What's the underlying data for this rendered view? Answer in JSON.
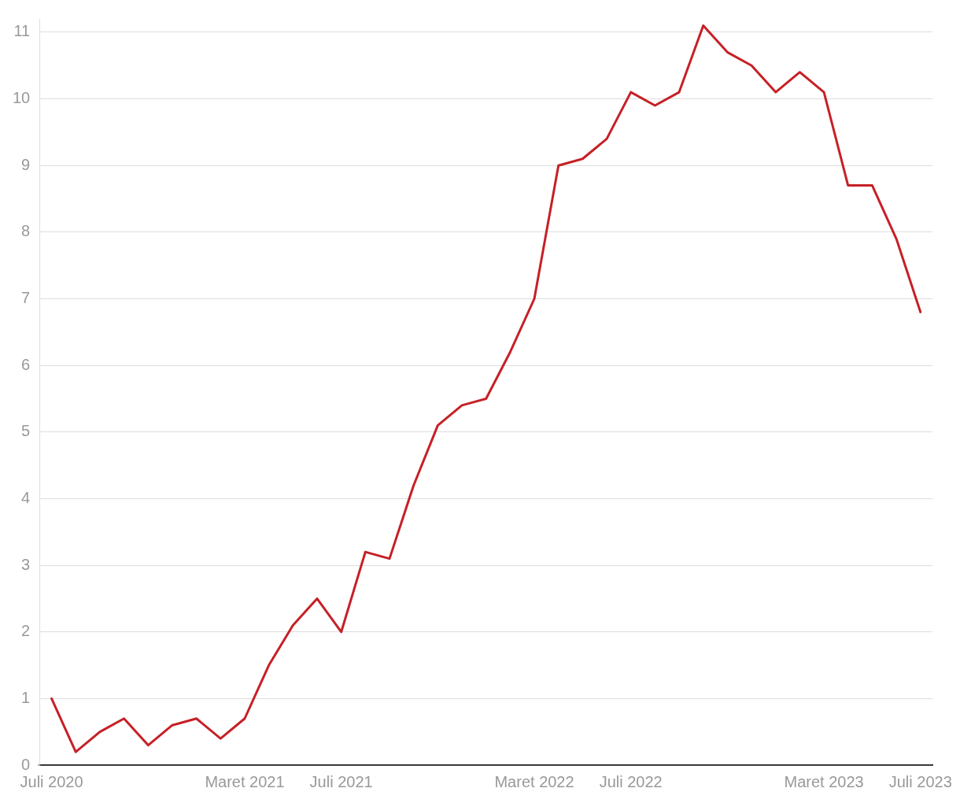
{
  "chart_data": {
    "type": "line",
    "categories": [
      "Juli 2020",
      null,
      null,
      null,
      null,
      null,
      null,
      null,
      "Maret 2021",
      null,
      null,
      null,
      "Juli 2021",
      null,
      null,
      null,
      null,
      null,
      null,
      null,
      "Maret 2022",
      null,
      null,
      null,
      "Juli 2022",
      null,
      null,
      null,
      null,
      null,
      null,
      null,
      "Maret 2023",
      null,
      null,
      null,
      "Juli 2023"
    ],
    "series": [
      {
        "color": "#c62026",
        "values": [
          1.0,
          0.2,
          0.5,
          0.7,
          0.3,
          0.6,
          0.7,
          0.4,
          0.7,
          1.5,
          2.1,
          2.5,
          2.0,
          3.2,
          3.1,
          4.2,
          5.1,
          5.4,
          5.5,
          6.2,
          7.0,
          9.0,
          9.1,
          9.4,
          10.1,
          9.9,
          10.1,
          11.1,
          10.7,
          10.5,
          10.1,
          10.4,
          10.1,
          8.7,
          8.7,
          7.9,
          6.8
        ]
      }
    ],
    "ylim": [
      0,
      11.2
    ],
    "yticks": [
      0,
      1,
      2,
      3,
      4,
      5,
      6,
      7,
      8,
      9,
      10,
      11
    ],
    "grid": "y",
    "legend": false,
    "marker": "none",
    "line_style": "solid"
  }
}
